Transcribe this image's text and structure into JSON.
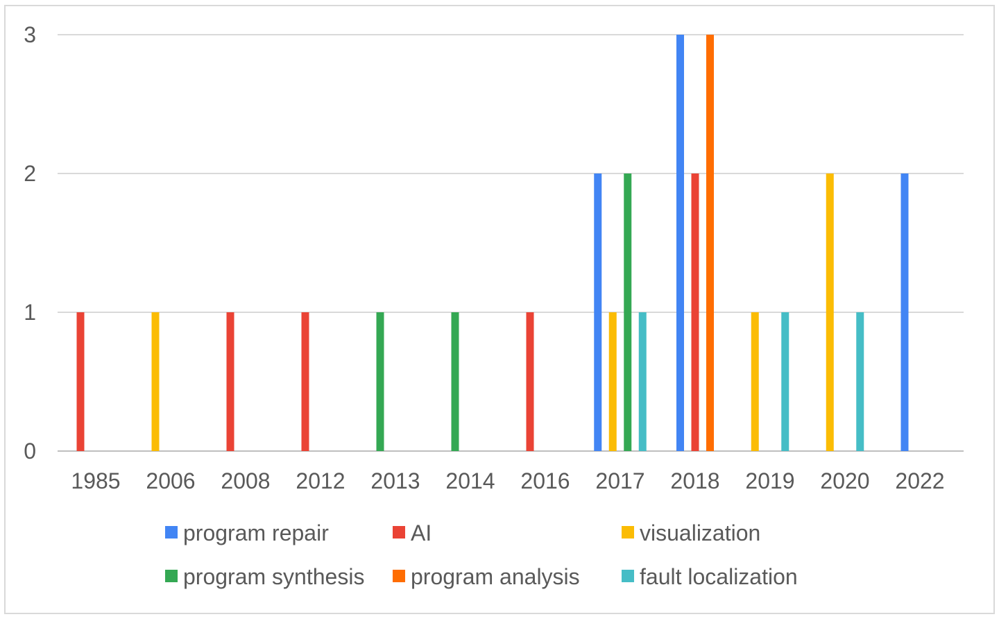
{
  "chart_data": {
    "type": "bar",
    "title": "",
    "xlabel": "",
    "ylabel": "",
    "ylim": [
      0,
      3
    ],
    "yticks": [
      0,
      1,
      2,
      3
    ],
    "grid": true,
    "legend_position": "bottom",
    "categories": [
      "1985",
      "2006",
      "2008",
      "2012",
      "2013",
      "2014",
      "2016",
      "2017",
      "2018",
      "2019",
      "2020",
      "2022"
    ],
    "series": [
      {
        "name": "program repair",
        "color": "#4285f4",
        "values": [
          0,
          0,
          0,
          0,
          0,
          0,
          0,
          2,
          3,
          0,
          0,
          2
        ]
      },
      {
        "name": "AI",
        "color": "#ea4335",
        "values": [
          1,
          0,
          1,
          1,
          0,
          0,
          1,
          0,
          2,
          0,
          0,
          0
        ]
      },
      {
        "name": "visualization",
        "color": "#fbbc04",
        "values": [
          0,
          1,
          0,
          0,
          0,
          0,
          0,
          1,
          0,
          1,
          2,
          0
        ]
      },
      {
        "name": "program synthesis",
        "color": "#34a853",
        "values": [
          0,
          0,
          0,
          0,
          1,
          1,
          0,
          2,
          0,
          0,
          0,
          0
        ]
      },
      {
        "name": "program analysis",
        "color": "#ff6d01",
        "values": [
          0,
          0,
          0,
          0,
          0,
          0,
          0,
          0,
          3,
          0,
          0,
          0
        ]
      },
      {
        "name": "fault localization",
        "color": "#46bdc6",
        "values": [
          0,
          0,
          0,
          0,
          0,
          0,
          0,
          1,
          0,
          1,
          1,
          0
        ]
      }
    ]
  }
}
